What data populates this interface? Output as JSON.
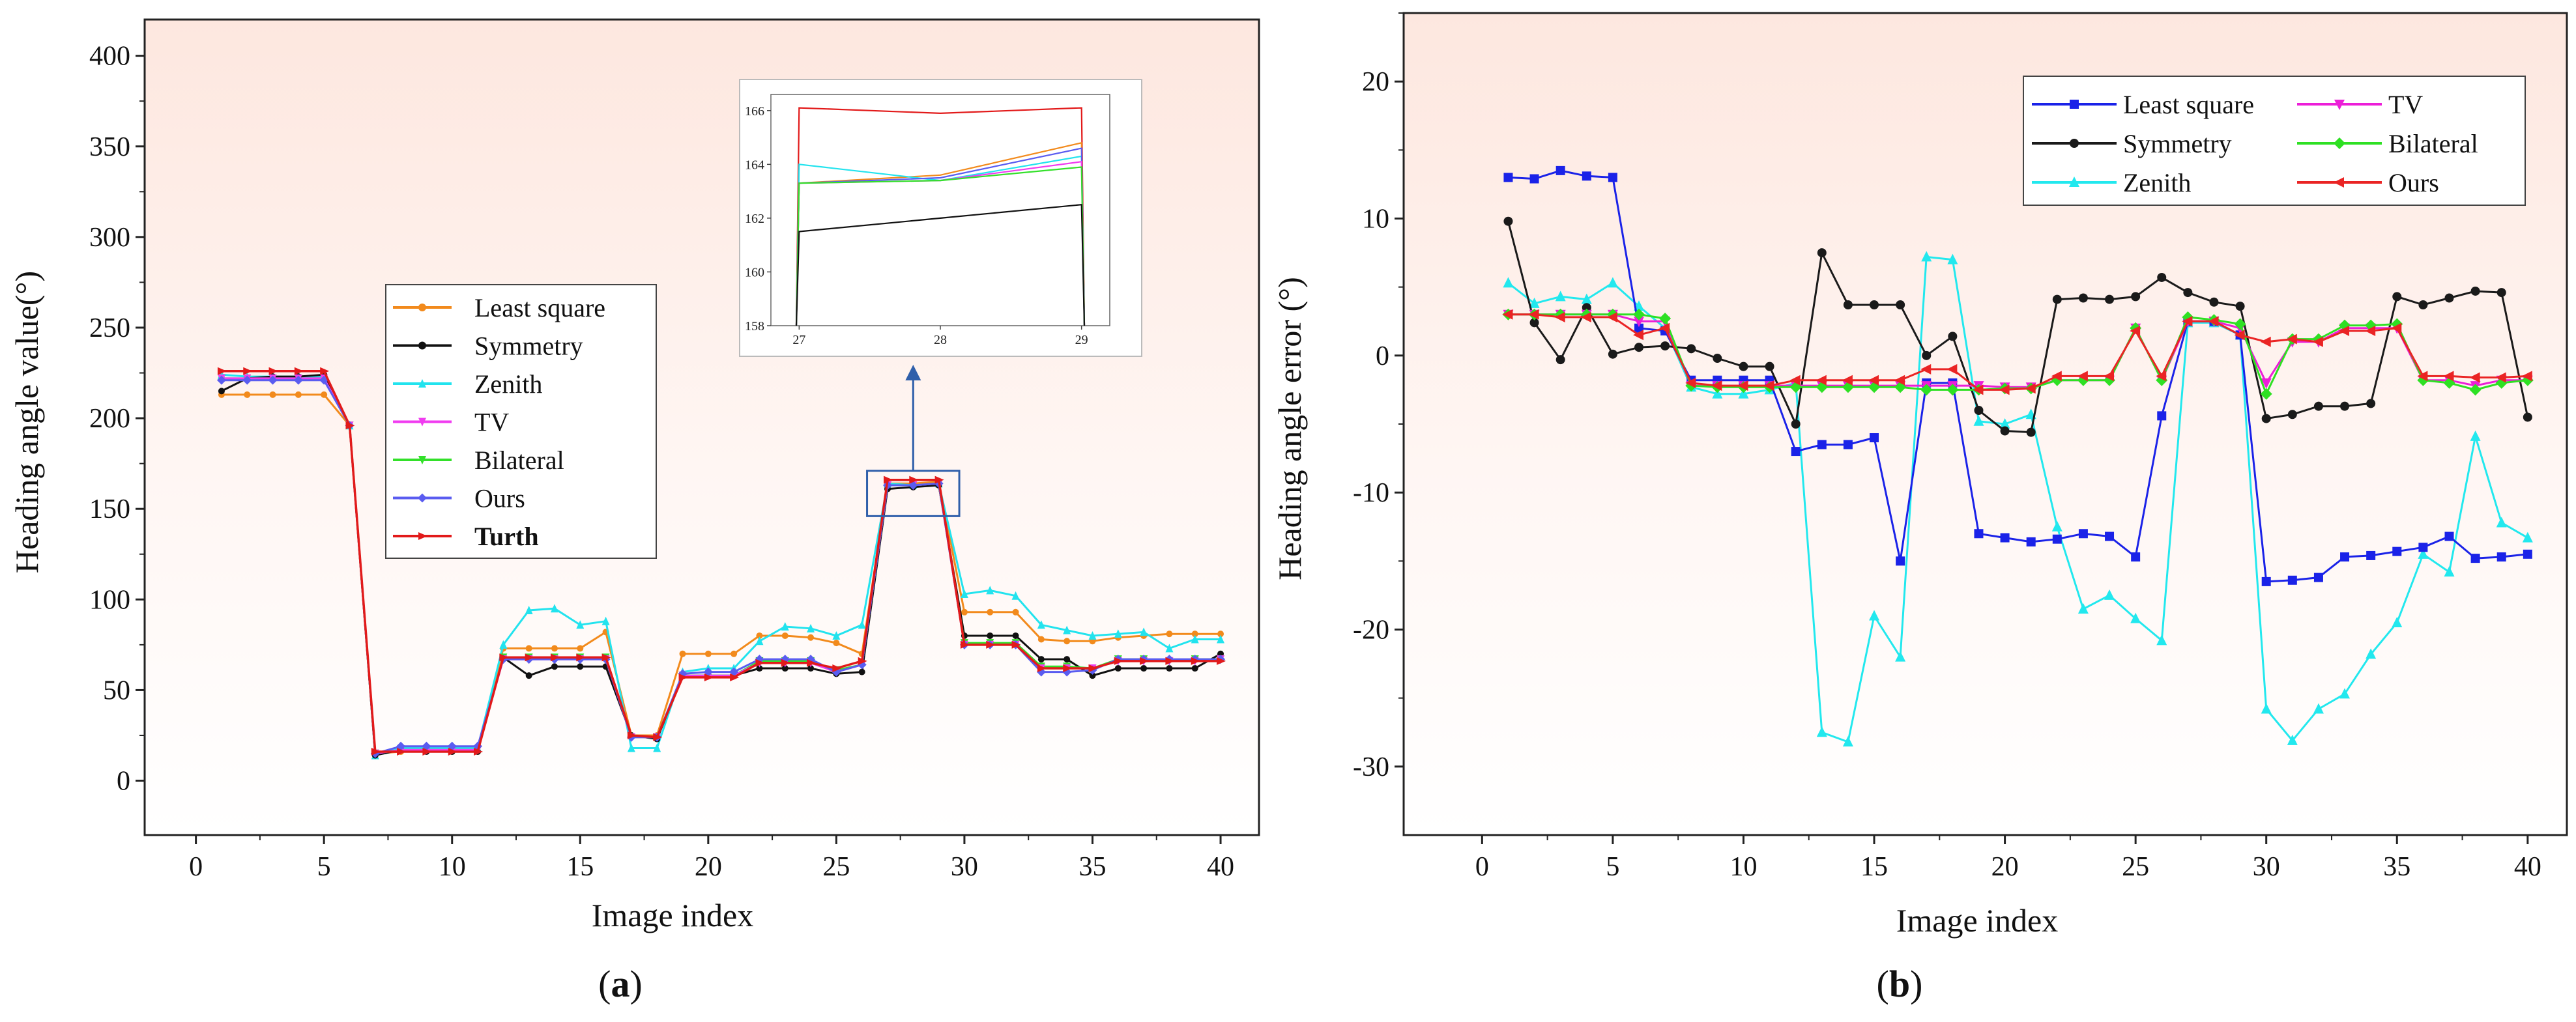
{
  "panels": [
    {
      "id": "a",
      "caption_open": "(",
      "caption_letter": "a",
      "caption_close": ")",
      "colors": {
        "Least square": "#f28a1c",
        "Symmetry": "#111111",
        "Zenith": "#22e3ee",
        "TV": "#f03cf0",
        "Bilateral": "#33e02a",
        "Ours": "#5a5cf0",
        "Turth": "#e21a1a"
      },
      "inset": {
        "x_ticks": [
          27,
          28,
          29
        ],
        "y_ticks": [
          158,
          160,
          162,
          164,
          166
        ],
        "xlim": [
          26.8,
          29.2
        ],
        "ylim": [
          158,
          166.6
        ],
        "series": [
          {
            "name": "Turth",
            "color": "#e21a1a",
            "x": [
              26.98,
              27,
              28,
              29,
              29.02
            ],
            "y": [
              158,
              166.1,
              165.9,
              166.1,
              158
            ]
          },
          {
            "name": "Least square",
            "color": "#f28a1c",
            "x": [
              26.98,
              27,
              28,
              29,
              29.02
            ],
            "y": [
              158,
              163.3,
              163.6,
              164.8,
              158
            ]
          },
          {
            "name": "Zenith",
            "color": "#22e3ee",
            "x": [
              26.98,
              27,
              28,
              29,
              29.02
            ],
            "y": [
              158,
              164,
              163.4,
              164.3,
              158
            ]
          },
          {
            "name": "Ours",
            "color": "#5a5cf0",
            "x": [
              26.98,
              27,
              28,
              29,
              29.02
            ],
            "y": [
              158,
              163.3,
              163.5,
              164.6,
              158
            ]
          },
          {
            "name": "TV",
            "color": "#f03cf0",
            "x": [
              26.98,
              27,
              28,
              29,
              29.02
            ],
            "y": [
              158,
              163.3,
              163.4,
              164.1,
              158
            ]
          },
          {
            "name": "Bilateral",
            "color": "#33e02a",
            "x": [
              26.98,
              27,
              28,
              29,
              29.02
            ],
            "y": [
              158,
              163.3,
              163.4,
              163.9,
              158
            ]
          },
          {
            "name": "Symmetry",
            "color": "#111111",
            "x": [
              26.98,
              27,
              28,
              29,
              29.02
            ],
            "y": [
              158,
              161.5,
              162,
              162.5,
              158
            ]
          }
        ]
      }
    },
    {
      "id": "b",
      "caption_open": "(",
      "caption_letter": "b",
      "caption_close": ")",
      "colors": {
        "Least square": "#1a22e8",
        "Symmetry": "#1a1a1a",
        "Zenith": "#22e8ee",
        "TV": "#ec1ed8",
        "Bilateral": "#2ee023",
        "Ours": "#ea2424"
      }
    }
  ],
  "chart_data": [
    {
      "type": "line",
      "title": "",
      "xlabel": "Image index",
      "ylabel": "Heading angle value(°)",
      "xlim": [
        -2,
        41.5
      ],
      "ylim": [
        -30,
        420
      ],
      "x_ticks": [
        0,
        5,
        10,
        15,
        20,
        25,
        30,
        35,
        40
      ],
      "y_ticks": [
        0,
        50,
        100,
        150,
        200,
        250,
        300,
        350,
        400
      ],
      "legend": [
        "Least square",
        "Symmetry",
        "Zenith",
        "TV",
        "Bilateral",
        "Ours",
        "Turth"
      ],
      "legend_position": "center-left",
      "x": [
        1,
        2,
        3,
        4,
        5,
        6,
        7,
        8,
        9,
        10,
        11,
        12,
        13,
        14,
        15,
        16,
        17,
        18,
        19,
        20,
        21,
        22,
        23,
        24,
        25,
        26,
        27,
        28,
        29,
        30,
        31,
        32,
        33,
        34,
        35,
        36,
        37,
        38,
        39,
        40
      ],
      "series": [
        {
          "name": "Least square",
          "values": [
            213,
            213,
            213,
            213,
            213,
            196,
            15,
            16,
            17,
            16,
            16,
            73,
            73,
            73,
            73,
            82,
            25,
            25,
            70,
            70,
            70,
            80,
            80,
            79,
            76,
            70,
            164,
            164,
            165,
            93,
            93,
            93,
            78,
            77,
            77,
            79,
            80,
            81,
            81,
            81
          ]
        },
        {
          "name": "Symmetry",
          "values": [
            215,
            222,
            223,
            223,
            224,
            196,
            14,
            17,
            16,
            16,
            16,
            68,
            58,
            63,
            63,
            63,
            25,
            23,
            58,
            58,
            58,
            62,
            62,
            62,
            59,
            60,
            161,
            162,
            163,
            80,
            80,
            80,
            67,
            67,
            58,
            62,
            62,
            62,
            62,
            70
          ]
        },
        {
          "name": "Zenith",
          "values": [
            224,
            223,
            223,
            223,
            223,
            196,
            14,
            18,
            18,
            18,
            18,
            75,
            94,
            95,
            86,
            88,
            18,
            18,
            60,
            62,
            62,
            77,
            85,
            84,
            80,
            86,
            164,
            163,
            164,
            103,
            105,
            102,
            86,
            83,
            80,
            81,
            82,
            73,
            78,
            78
          ]
        },
        {
          "name": "TV",
          "values": [
            222,
            222,
            222,
            222,
            222,
            196,
            15,
            17,
            17,
            17,
            17,
            67,
            67,
            67,
            67,
            67,
            24,
            24,
            58,
            58,
            58,
            65,
            65,
            65,
            60,
            64,
            163,
            163,
            164,
            75,
            75,
            75,
            62,
            62,
            62,
            66,
            66,
            66,
            66,
            67
          ]
        },
        {
          "name": "Bilateral",
          "values": [
            222,
            222,
            222,
            222,
            222,
            196,
            15,
            17,
            17,
            17,
            17,
            68,
            68,
            68,
            68,
            68,
            24,
            24,
            58,
            58,
            58,
            66,
            66,
            66,
            61,
            64,
            163,
            163,
            164,
            76,
            76,
            76,
            63,
            63,
            62,
            67,
            67,
            66,
            67,
            67
          ]
        },
        {
          "name": "Ours",
          "values": [
            221,
            221,
            221,
            221,
            221,
            196,
            15,
            19,
            19,
            19,
            19,
            67,
            67,
            67,
            67,
            67,
            24,
            24,
            59,
            60,
            60,
            67,
            67,
            67,
            60,
            64,
            163,
            163,
            164,
            75,
            75,
            75,
            60,
            60,
            61,
            67,
            67,
            67,
            67,
            67
          ]
        },
        {
          "name": "Turth",
          "values": [
            226,
            226,
            226,
            226,
            226,
            196,
            16,
            16,
            16,
            16,
            16,
            68,
            68,
            68,
            68,
            68,
            25,
            24,
            57,
            57,
            57,
            65,
            65,
            65,
            62,
            66,
            166,
            166,
            166,
            75,
            75,
            75,
            62,
            62,
            62,
            66,
            66,
            66,
            66,
            66
          ]
        }
      ],
      "annotations": [
        {
          "type": "zoom-box",
          "x_range": [
            26.2,
            29.8
          ],
          "y_range": [
            146,
            171
          ]
        }
      ]
    },
    {
      "type": "line",
      "title": "",
      "xlabel": "Image index",
      "ylabel": "Heading angle error (°)",
      "xlim": [
        -3,
        41.5
      ],
      "ylim": [
        -35,
        25
      ],
      "x_ticks": [
        0,
        5,
        10,
        15,
        20,
        25,
        30,
        35,
        40
      ],
      "y_ticks": [
        -30,
        -20,
        -10,
        0,
        10,
        20
      ],
      "legend": [
        "Least square",
        "TV",
        "Symmetry",
        "Bilateral",
        "Zenith",
        "Ours"
      ],
      "legend_position": "top-right",
      "x": [
        1,
        2,
        3,
        4,
        5,
        6,
        7,
        8,
        9,
        10,
        11,
        12,
        13,
        14,
        15,
        16,
        17,
        18,
        19,
        20,
        21,
        22,
        23,
        24,
        25,
        26,
        27,
        28,
        29,
        30,
        31,
        32,
        33,
        34,
        35,
        36,
        37,
        38,
        39,
        40
      ],
      "series": [
        {
          "name": "Least square",
          "values": [
            13,
            12.9,
            13.5,
            13.1,
            13,
            2,
            1.8,
            -1.8,
            -1.8,
            -1.8,
            -1.8,
            -7,
            -6.5,
            -6.5,
            -6,
            -15,
            -2,
            -2,
            -13,
            -13.3,
            -13.6,
            -13.4,
            -13,
            -13.2,
            -14.7,
            -4.4,
            2.5,
            2.5,
            1.5,
            -16.5,
            -16.4,
            -16.2,
            -14.7,
            -14.6,
            -14.3,
            -14,
            -13.2,
            -14.8,
            -14.7,
            -14.5
          ]
        },
        {
          "name": "Symmetry",
          "values": [
            9.8,
            2.4,
            -0.3,
            3.5,
            0.1,
            0.6,
            0.7,
            0.5,
            -0.2,
            -0.8,
            -0.8,
            -5,
            7.5,
            3.7,
            3.7,
            3.7,
            0,
            1.4,
            -4,
            -5.5,
            -5.6,
            4.1,
            4.2,
            4.1,
            4.3,
            5.7,
            4.6,
            3.9,
            3.6,
            -4.6,
            -4.3,
            -3.7,
            -3.7,
            -3.5,
            4.3,
            3.7,
            4.2,
            4.7,
            4.6,
            -4.5
          ]
        },
        {
          "name": "Zenith",
          "values": [
            5.3,
            3.8,
            4.3,
            4.1,
            5.3,
            3.6,
            2,
            -2.3,
            -2.8,
            -2.8,
            -2.5,
            -2,
            -27.5,
            -28.2,
            -19,
            -22,
            7.2,
            7,
            -4.8,
            -5,
            -4.3,
            -12.5,
            -18.5,
            -17.5,
            -19.2,
            -20.8,
            2.4,
            2.4,
            1.5,
            -25.8,
            -28.1,
            -25.8,
            -24.7,
            -21.8,
            -19.5,
            -14.5,
            -15.8,
            -5.9,
            -12.2,
            -13.3
          ]
        },
        {
          "name": "TV",
          "values": [
            3,
            3,
            3,
            3,
            3,
            2.5,
            2.5,
            -2.2,
            -2.2,
            -2.2,
            -2.2,
            -2.2,
            -2.2,
            -2.2,
            -2.2,
            -2.2,
            -2.2,
            -2.2,
            -2.2,
            -2.3,
            -2.3,
            -1.8,
            -1.8,
            -1.8,
            2,
            -1.8,
            2.5,
            2.5,
            2,
            -2,
            1,
            1,
            2,
            2,
            2,
            -1.8,
            -1.8,
            -2.2,
            -1.8,
            -1.8
          ]
        },
        {
          "name": "Bilateral",
          "values": [
            3,
            3,
            3,
            3,
            3,
            3,
            2.7,
            -2.2,
            -2.3,
            -2.3,
            -2.3,
            -2.3,
            -2.3,
            -2.3,
            -2.3,
            -2.3,
            -2.5,
            -2.5,
            -2.5,
            -2.4,
            -2.4,
            -1.8,
            -1.8,
            -1.8,
            2,
            -1.8,
            2.8,
            2.6,
            2.3,
            -2.8,
            1.2,
            1.2,
            2.2,
            2.2,
            2.3,
            -1.8,
            -2,
            -2.5,
            -2,
            -1.8
          ]
        },
        {
          "name": "Ours",
          "values": [
            3,
            3,
            2.8,
            2.8,
            2.8,
            1.5,
            2,
            -2,
            -2.2,
            -2.2,
            -2.2,
            -1.8,
            -1.8,
            -1.8,
            -1.8,
            -1.8,
            -1,
            -1,
            -2.5,
            -2.5,
            -2.4,
            -1.5,
            -1.5,
            -1.5,
            1.8,
            -1.5,
            2.5,
            2.5,
            1.5,
            1,
            1.2,
            1,
            1.8,
            1.8,
            2,
            -1.5,
            -1.5,
            -1.6,
            -1.6,
            -1.5
          ]
        }
      ]
    }
  ]
}
